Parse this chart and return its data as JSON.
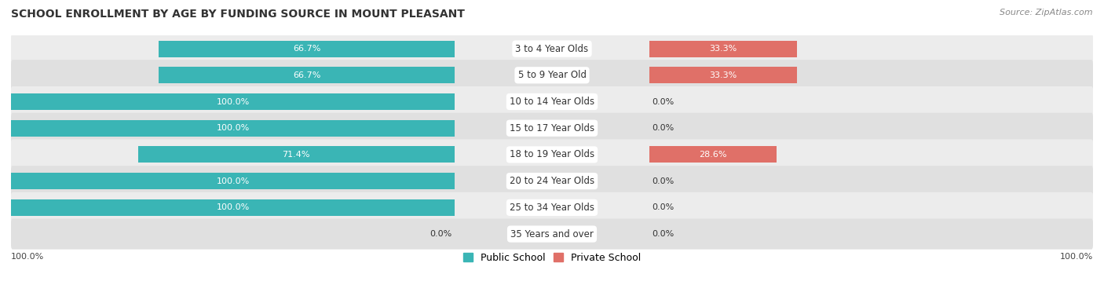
{
  "title": "SCHOOL ENROLLMENT BY AGE BY FUNDING SOURCE IN MOUNT PLEASANT",
  "source": "Source: ZipAtlas.com",
  "categories": [
    "3 to 4 Year Olds",
    "5 to 9 Year Old",
    "10 to 14 Year Olds",
    "15 to 17 Year Olds",
    "18 to 19 Year Olds",
    "20 to 24 Year Olds",
    "25 to 34 Year Olds",
    "35 Years and over"
  ],
  "public_values": [
    66.7,
    66.7,
    100.0,
    100.0,
    71.4,
    100.0,
    100.0,
    0.0
  ],
  "private_values": [
    33.3,
    33.3,
    0.0,
    0.0,
    28.6,
    0.0,
    0.0,
    0.0
  ],
  "public_labels": [
    "66.7%",
    "66.7%",
    "100.0%",
    "100.0%",
    "71.4%",
    "100.0%",
    "100.0%",
    "0.0%"
  ],
  "private_labels": [
    "33.3%",
    "33.3%",
    "0.0%",
    "0.0%",
    "28.6%",
    "0.0%",
    "0.0%",
    "0.0%"
  ],
  "public_color": "#3ab5b5",
  "private_color": "#e07068",
  "public_color_zero": "#a0d8d8",
  "private_color_zero": "#f0b0aa",
  "row_colors": [
    "#ececec",
    "#e0e0e0"
  ],
  "title_fontsize": 10,
  "label_fontsize": 8.5,
  "value_fontsize": 8,
  "legend_fontsize": 9,
  "source_fontsize": 8,
  "x_left_label": "100.0%",
  "x_right_label": "100.0%"
}
